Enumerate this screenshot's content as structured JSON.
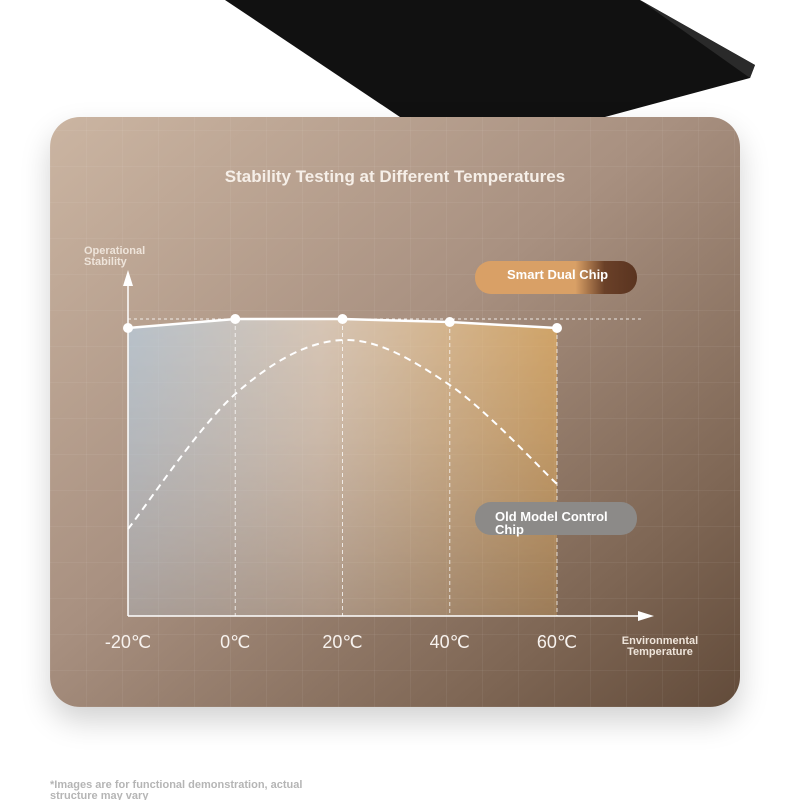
{
  "chart_data": {
    "type": "line",
    "title": "Stability Testing at Different Temperatures",
    "y_label": "Operational Stability",
    "x_label": "Environmental Temperature",
    "categories": [
      "-20℃",
      "0℃",
      "20℃",
      "40℃",
      "60℃"
    ],
    "series": [
      {
        "name": "Smart Dual Chip",
        "color": "#d9a066",
        "values": [
          96,
          99,
          99,
          98,
          96
        ]
      },
      {
        "name": "Old Model Control Chip",
        "color": "#8c8a88",
        "values": [
          29,
          74,
          92,
          77,
          44
        ]
      }
    ],
    "ylim": [
      0,
      100
    ],
    "footnote": "*Images are for functional demonstration, actual structure may vary"
  }
}
